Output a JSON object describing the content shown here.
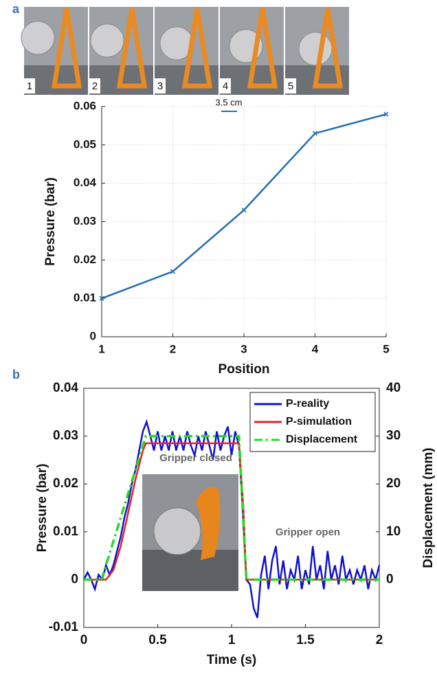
{
  "figure": {
    "panel_labels": [
      "a",
      "b"
    ],
    "photo_labels": [
      "1",
      "2",
      "3",
      "4",
      "5"
    ],
    "scale_bar": "3.5 cm"
  },
  "chart_data": [
    {
      "type": "line",
      "xlabel": "Position",
      "ylabel": "Pressure (bar)",
      "x": [
        1,
        2,
        3,
        4,
        5
      ],
      "series": [
        {
          "color": "#1f6db5",
          "values": [
            0.01,
            0.017,
            0.033,
            0.053,
            0.058
          ]
        }
      ],
      "xlim": [
        1,
        5
      ],
      "xticks": [
        1,
        2,
        3,
        4,
        5
      ],
      "ylim": [
        0,
        0.06
      ],
      "yticks": [
        0,
        0.01,
        0.02,
        0.03,
        0.04,
        0.05,
        0.06
      ],
      "grid": true
    },
    {
      "type": "line",
      "xlabel": "Time (s)",
      "ylabel": "Pressure (bar)",
      "y2label": "Displacement (mm)",
      "annotations": [
        "Gripper closed",
        "Gripper open"
      ],
      "series": [
        {
          "name": "P-reality",
          "color": "#1010d0",
          "linestyle": "solid",
          "x": [
            0,
            0.025,
            0.05,
            0.075,
            0.1,
            0.125,
            0.15,
            0.175,
            0.2,
            0.225,
            0.25,
            0.275,
            0.3,
            0.325,
            0.35,
            0.375,
            0.4,
            0.425,
            0.45,
            0.475,
            0.5,
            0.525,
            0.55,
            0.575,
            0.6,
            0.625,
            0.65,
            0.675,
            0.7,
            0.725,
            0.75,
            0.775,
            0.8,
            0.825,
            0.85,
            0.875,
            0.9,
            0.925,
            0.95,
            0.975,
            1,
            1.025,
            1.05,
            1.075,
            1.1,
            1.125,
            1.15,
            1.175,
            1.2,
            1.225,
            1.25,
            1.275,
            1.3,
            1.325,
            1.35,
            1.375,
            1.4,
            1.425,
            1.45,
            1.475,
            1.5,
            1.525,
            1.55,
            1.575,
            1.6,
            1.625,
            1.65,
            1.675,
            1.7,
            1.725,
            1.75,
            1.775,
            1.8,
            1.825,
            1.85,
            1.875,
            1.9,
            1.925,
            1.95,
            1.975,
            2
          ],
          "values": [
            0,
            0.0015,
            0,
            -0.002,
            0.001,
            0,
            0.003,
            0.001,
            0.003,
            0.006,
            0.009,
            0.013,
            0.016,
            0.02,
            0.023,
            0.027,
            0.031,
            0.033,
            0.03,
            0.027,
            0.031,
            0.027,
            0.03,
            0.027,
            0.031,
            0.027,
            0.03,
            0.027,
            0.031,
            0.028,
            0.026,
            0.03,
            0.027,
            0.031,
            0.028,
            0.025,
            0.031,
            0.027,
            0.03,
            0.032,
            0.026,
            0.031,
            0.028,
            0.015,
            0,
            -0.001,
            -0.006,
            -0.008,
            0.001,
            0.005,
            -0.002,
            0.004,
            0.007,
            -0.001,
            0.004,
            -0.002,
            0.002,
            0,
            0.005,
            -0.002,
            0.002,
            -0.001,
            0.007,
            0,
            0.003,
            -0.002,
            0.006,
            0,
            0.003,
            -0.001,
            0.005,
            0,
            0.002,
            -0.001,
            0.002,
            0,
            0.003,
            -0.002,
            0.002,
            0,
            0.003
          ]
        },
        {
          "name": "P-simulation",
          "color": "#e8201c",
          "linestyle": "solid",
          "x": [
            0,
            0.15,
            0.2,
            0.25,
            0.3,
            0.35,
            0.4,
            0.42,
            1.05,
            1.08,
            1.1,
            2
          ],
          "values": [
            0,
            0,
            0.002,
            0.007,
            0.014,
            0.021,
            0.027,
            0.0285,
            0.0285,
            0.015,
            0,
            0
          ]
        },
        {
          "name": "Displacement",
          "color": "#22dd22",
          "linestyle": "dashdot",
          "axis": "y2",
          "x": [
            0,
            0.12,
            0.42,
            1.05,
            1.1,
            2
          ],
          "values": [
            0,
            0,
            30,
            30,
            0,
            0
          ]
        }
      ],
      "xlim": [
        0,
        2
      ],
      "xticks": [
        0,
        0.5,
        1,
        1.5,
        2
      ],
      "ylim": [
        -0.01,
        0.04
      ],
      "yticks": [
        -0.01,
        0,
        0.01,
        0.02,
        0.03,
        0.04
      ],
      "y2lim": [
        -10,
        40
      ],
      "y2ticks": [
        0,
        10,
        20,
        30,
        40
      ],
      "grid": false,
      "legend": "upper right"
    }
  ]
}
